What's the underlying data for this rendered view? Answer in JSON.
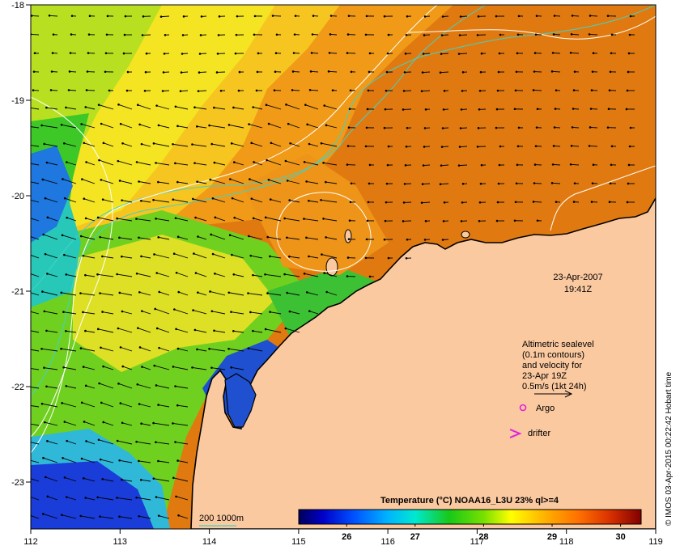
{
  "map": {
    "type": "sea-surface-temperature-map",
    "lon_range": [
      112,
      119
    ],
    "lat_range": [
      -23.5,
      -18
    ],
    "lon_ticks": [
      "112",
      "113",
      "114",
      "115",
      "116",
      "117",
      "118",
      "119"
    ],
    "lat_ticks": [
      "-18",
      "-19",
      "-20",
      "-21",
      "-22",
      "-23"
    ],
    "land_color": "#FBC9A0",
    "coast_color": "#000000",
    "contour_color": "#FFFFFF",
    "isobath_color": "#3FD3C8"
  },
  "date_block": {
    "date": "23-Apr-2007",
    "time": "19:41Z"
  },
  "legend": {
    "line1": "Altimetric sealevel",
    "line2": "(0.1m contours)",
    "line3": "and velocity for",
    "line4": "23-Apr 19Z",
    "line5": "0.5m/s (1kt 24h)",
    "argo_label": "Argo",
    "drifter_label": "drifter",
    "marker_color": "#E020E0"
  },
  "isobath_legend": {
    "label": "200  1000m"
  },
  "colorbar": {
    "title": "Temperature (°C) NOAA16_L3U 23% ql>=4",
    "ticks": [
      "26",
      "27",
      "28",
      "29",
      "30"
    ],
    "range": [
      25.3,
      30.3
    ]
  },
  "side_text": "© IMOS 03-Apr-2015 00:22:42 Hobart time"
}
